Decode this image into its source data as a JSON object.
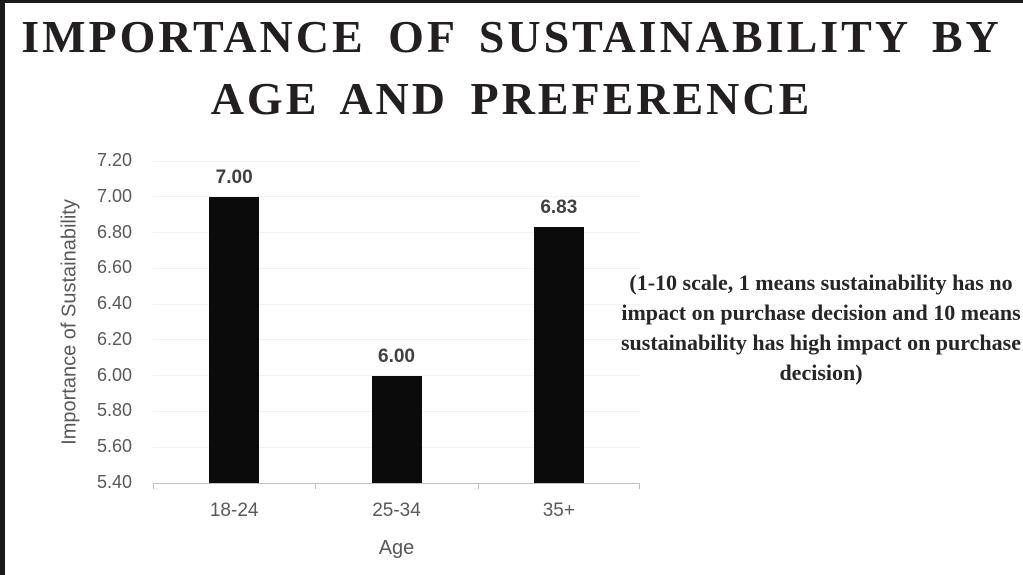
{
  "title_lines": [
    "IMPORTANCE OF SUSTAINABILITY BY",
    "AGE AND PREFERENCE"
  ],
  "chart_data": {
    "type": "bar",
    "title": "IMPORTANCE OF SUSTAINABILITY BY AGE AND PREFERENCE",
    "categories": [
      "18-24",
      "25-34",
      "35+"
    ],
    "values": [
      7.0,
      6.0,
      6.83
    ],
    "value_labels": [
      "7.00",
      "6.00",
      "6.83"
    ],
    "xlabel": "Age",
    "ylabel": "Importance of Sustainability",
    "ylim": [
      5.4,
      7.2
    ],
    "ytick_step": 0.2,
    "yticks": [
      5.4,
      5.6,
      5.8,
      6.0,
      6.2,
      6.4,
      6.6,
      6.8,
      7.0,
      7.2
    ],
    "grid": "horizontal",
    "legend": "none",
    "annotation": "(1-10 scale, 1 means sustainability has no impact on purchase decision and 10 means sustainability has high impact on purchase decision)"
  },
  "colors": {
    "bar": "#0b0b0b",
    "axis_text": "#595959",
    "data_label": "#404040",
    "gridline": "#f2f2f2",
    "axis_line": "#bfbfbf",
    "title_text": "#231f20",
    "annotation_text": "#262626",
    "frame": "#1a1a1a",
    "background": "#ffffff"
  }
}
